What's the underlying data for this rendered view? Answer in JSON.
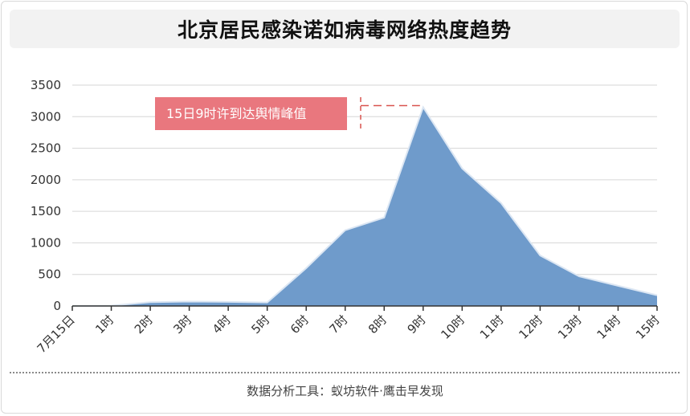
{
  "title": "北京居民感染诺如病毒网络热度趋势",
  "footer": "数据分析工具：蚁坊软件·鹰击早发现",
  "chart_data": {
    "type": "area",
    "categories": [
      "7月15日",
      "1时",
      "2时",
      "3时",
      "4时",
      "5时",
      "6时",
      "7时",
      "8时",
      "9时",
      "10时",
      "11时",
      "12时",
      "13时",
      "14时",
      "15时"
    ],
    "series": [
      {
        "values": [
          0,
          5,
          60,
          70,
          65,
          55,
          600,
          1200,
          1400,
          3150,
          2180,
          1630,
          800,
          470,
          320,
          170
        ]
      }
    ],
    "ylim": [
      0,
      3500
    ],
    "yticks": [
      0,
      500,
      1000,
      1500,
      2000,
      2500,
      3000,
      3500
    ],
    "grid": true,
    "annotation": {
      "text": "15日9时许到达舆情峰值",
      "target_category": "9时",
      "target_value": 3150
    },
    "colors": {
      "fill": "#6f9bcb",
      "stroke": "#dbe6f3",
      "annotation_bg": "#e9777e",
      "annotation_line": "#d9534f",
      "grid": "#d6d6d6"
    }
  }
}
